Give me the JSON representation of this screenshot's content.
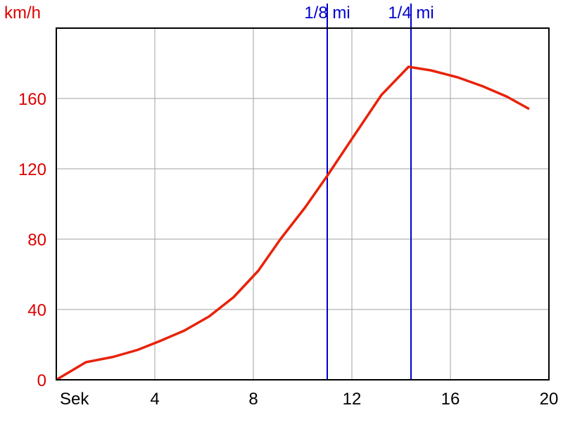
{
  "chart_data": {
    "type": "line",
    "ylabel": "km/h",
    "xlabel": "Sek",
    "xlim": [
      0,
      20
    ],
    "ylim": [
      0,
      200
    ],
    "x_ticks": [
      4,
      8,
      12,
      16,
      20
    ],
    "y_ticks": [
      0,
      40,
      80,
      120,
      160
    ],
    "grid": true,
    "colors": {
      "line": "#e8220a",
      "markers": "#0000cc",
      "y_labels": "#dd0000",
      "x_labels": "#000000",
      "grid": "#a0a0a0",
      "axes": "#000000"
    },
    "series": [
      {
        "x": [
          0,
          1.2,
          2.3,
          3.3,
          4.2,
          5.2,
          6.2,
          7.2,
          8.2,
          9.1,
          10.1,
          11.0,
          12.0,
          13.2,
          14.3,
          15.2,
          16.3,
          17.3,
          18.3,
          19.2
        ],
        "y": [
          0,
          10,
          13,
          17,
          22,
          28,
          36,
          47,
          62,
          80,
          98,
          116,
          137,
          162,
          178,
          176,
          172,
          167,
          161,
          154
        ]
      }
    ],
    "markers": [
      {
        "label": "1/8 mi",
        "x": 11.0
      },
      {
        "label": "1/4 mi",
        "x": 14.4
      }
    ]
  }
}
